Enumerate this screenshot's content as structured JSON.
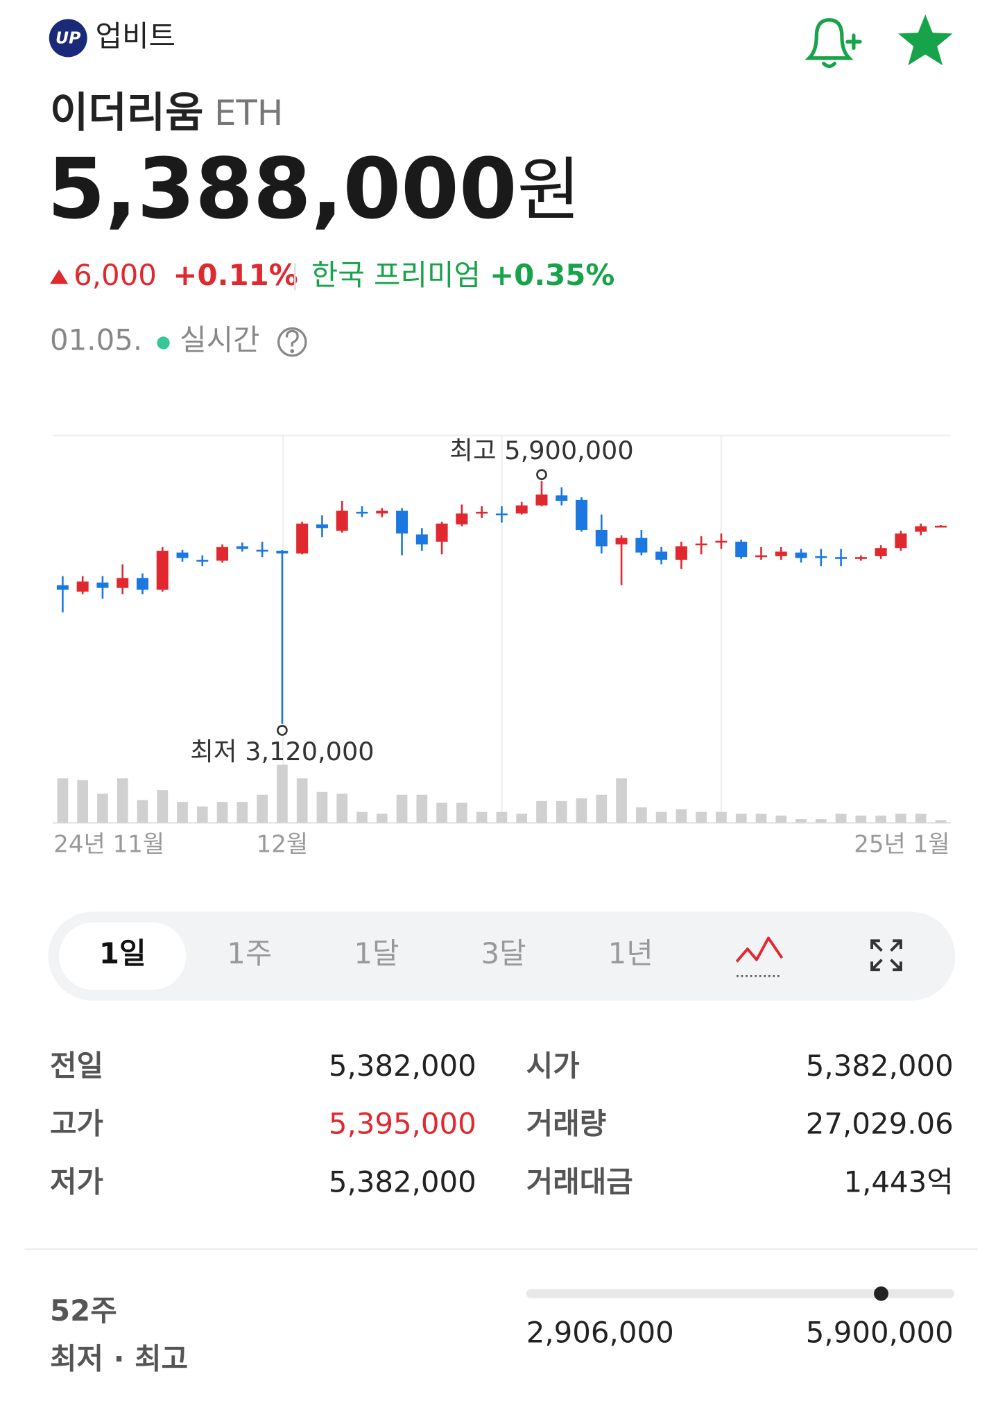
{
  "header": {
    "logo": "UP",
    "brand": "업비트"
  },
  "coin": {
    "name": "이더리움",
    "symbol": "ETH",
    "price": {
      "value": 5388000,
      "label": "5,388,000"
    },
    "unit": "원",
    "change": "6,000",
    "change_rate": "+0.11%",
    "premium_label": "한국 프리미엄",
    "premium": "+0.35%",
    "date": "01.05.",
    "status": "실시간"
  },
  "chart_data": {
    "type": "candlestick",
    "categories": [
      "24년 11월",
      null,
      null,
      null,
      null,
      null,
      null,
      null,
      null,
      null,
      null,
      "12월",
      null,
      null,
      null,
      null,
      null,
      null,
      null,
      null,
      null,
      null,
      null,
      null,
      null,
      null,
      null,
      null,
      null,
      null,
      null,
      null,
      null,
      null,
      null,
      null,
      null,
      null,
      null,
      null,
      null,
      null,
      null,
      null,
      "25년 1월"
    ],
    "open": [
      4707000,
      4634000,
      4738000,
      4676000,
      4790000,
      4655000,
      5081000,
      4998000,
      4987000,
      5153000,
      5112000,
      5101000,
      5070000,
      5402000,
      5329000,
      5547000,
      5527000,
      5558000,
      5288000,
      5205000,
      5402000,
      5527000,
      5527000,
      5527000,
      5620000,
      5734000,
      5682000,
      5340000,
      5174000,
      5247000,
      5091000,
      4998000,
      5164000,
      5195000,
      5205000,
      5029000,
      5039000,
      5081000,
      5039000,
      5029000,
      5008000,
      5039000,
      5132000,
      5319000,
      5382000
    ],
    "high": [
      4811000,
      4811000,
      4811000,
      4946000,
      4842000,
      5143000,
      5112000,
      5049000,
      5174000,
      5195000,
      5205000,
      5110000,
      5433000,
      5506000,
      5672000,
      5610000,
      5589000,
      5589000,
      5361000,
      5433000,
      5630000,
      5610000,
      5610000,
      5661000,
      5900000,
      5827000,
      5713000,
      5516000,
      5278000,
      5340000,
      5143000,
      5205000,
      5267000,
      5298000,
      5226000,
      5143000,
      5143000,
      5122000,
      5122000,
      5122000,
      5049000,
      5164000,
      5329000,
      5412000,
      5395000
    ],
    "low": [
      4396000,
      4604000,
      4552000,
      4604000,
      4604000,
      4634000,
      4977000,
      4925000,
      4966000,
      5091000,
      5029000,
      3120000,
      5060000,
      5257000,
      5309000,
      5485000,
      5485000,
      5049000,
      5101000,
      5060000,
      5381000,
      5475000,
      5423000,
      5516000,
      5610000,
      5620000,
      5319000,
      5070000,
      4707000,
      5049000,
      4946000,
      4894000,
      5060000,
      5122000,
      5008000,
      4998000,
      4998000,
      4966000,
      4925000,
      4925000,
      4987000,
      5008000,
      5101000,
      5278000,
      5382000
    ],
    "close": [
      4655000,
      4749000,
      4676000,
      4790000,
      4655000,
      5101000,
      5018000,
      4977000,
      5143000,
      5122000,
      5091000,
      5070000,
      5412000,
      5361000,
      5558000,
      5527000,
      5558000,
      5298000,
      5174000,
      5412000,
      5527000,
      5547000,
      5506000,
      5620000,
      5744000,
      5672000,
      5340000,
      5153000,
      5247000,
      5081000,
      4998000,
      5153000,
      5184000,
      5215000,
      5029000,
      5049000,
      5091000,
      5018000,
      5018000,
      5008000,
      5029000,
      5132000,
      5298000,
      5381000,
      5388000
    ],
    "volume": [
      49,
      47,
      32,
      49,
      25,
      36,
      23,
      18,
      23,
      23,
      31,
      64,
      49,
      34,
      32,
      12,
      10,
      31,
      31,
      22,
      22,
      12,
      12,
      10,
      24,
      24,
      27,
      31,
      49,
      17,
      12,
      15,
      12,
      12,
      10,
      10,
      8,
      4,
      4,
      10,
      8,
      8,
      10,
      10,
      3
    ],
    "ylim": [
      3100000,
      6420000
    ],
    "high_label": "최고 5,900,000",
    "low_label": "최저 3,120,000",
    "up_color": "#e0282e",
    "down_color": "#1b78e0",
    "volume_color": "#d0d0d0"
  },
  "periods": [
    "1일",
    "1주",
    "1달",
    "3달",
    "1년"
  ],
  "stats": [
    {
      "label": "전일",
      "value": "5,382,000"
    },
    {
      "label": "시가",
      "value": "5,382,000"
    },
    {
      "label": "고가",
      "value": "5,395,000"
    },
    {
      "label": "거래량",
      "value": "27,029.06"
    },
    {
      "label": "저가",
      "value": "5,382,000"
    },
    {
      "label": "거래대금",
      "value": "1,443억"
    }
  ],
  "range_52w": {
    "title": "52주",
    "subtitle": "최저 · 최고",
    "low": {
      "value": 2906000,
      "label": "2,906,000"
    },
    "high": {
      "value": 5900000,
      "label": "5,900,000"
    }
  }
}
